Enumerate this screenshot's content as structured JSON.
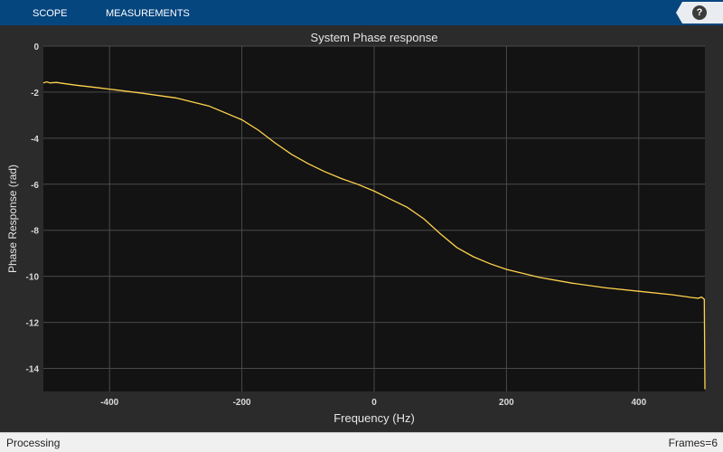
{
  "toolstrip": {
    "tabs": [
      {
        "label": "SCOPE"
      },
      {
        "label": "MEASUREMENTS"
      }
    ],
    "help_label": "?"
  },
  "chart_data": {
    "type": "line",
    "title": "System Phase response",
    "xlabel": "Frequency (Hz)",
    "ylabel": "Phase Response (rad)",
    "xlim": [
      -500,
      500
    ],
    "ylim": [
      -15,
      0
    ],
    "xticks": [
      -400,
      -200,
      0,
      200,
      400
    ],
    "yticks": [
      0,
      -2,
      -4,
      -6,
      -8,
      -10,
      -12,
      -14
    ],
    "grid": true,
    "series": [
      {
        "color": "#ffd34d",
        "x": [
          -500,
          -495,
          -490,
          -480,
          -470,
          -450,
          -420,
          -400,
          -350,
          -300,
          -250,
          -200,
          -175,
          -150,
          -125,
          -100,
          -75,
          -50,
          -25,
          0,
          25,
          50,
          75,
          100,
          125,
          150,
          175,
          200,
          250,
          300,
          350,
          400,
          450,
          480,
          490,
          495,
          499,
          500
        ],
        "y": [
          -1.6,
          -1.55,
          -1.6,
          -1.58,
          -1.62,
          -1.7,
          -1.8,
          -1.87,
          -2.05,
          -2.25,
          -2.6,
          -3.2,
          -3.65,
          -4.2,
          -4.7,
          -5.1,
          -5.45,
          -5.75,
          -6.0,
          -6.3,
          -6.65,
          -7.0,
          -7.5,
          -8.15,
          -8.75,
          -9.15,
          -9.45,
          -9.7,
          -10.05,
          -10.3,
          -10.5,
          -10.65,
          -10.8,
          -10.92,
          -10.95,
          -10.9,
          -11.0,
          -14.9
        ]
      }
    ]
  },
  "status": {
    "left": "Processing",
    "right": "Frames=6"
  }
}
